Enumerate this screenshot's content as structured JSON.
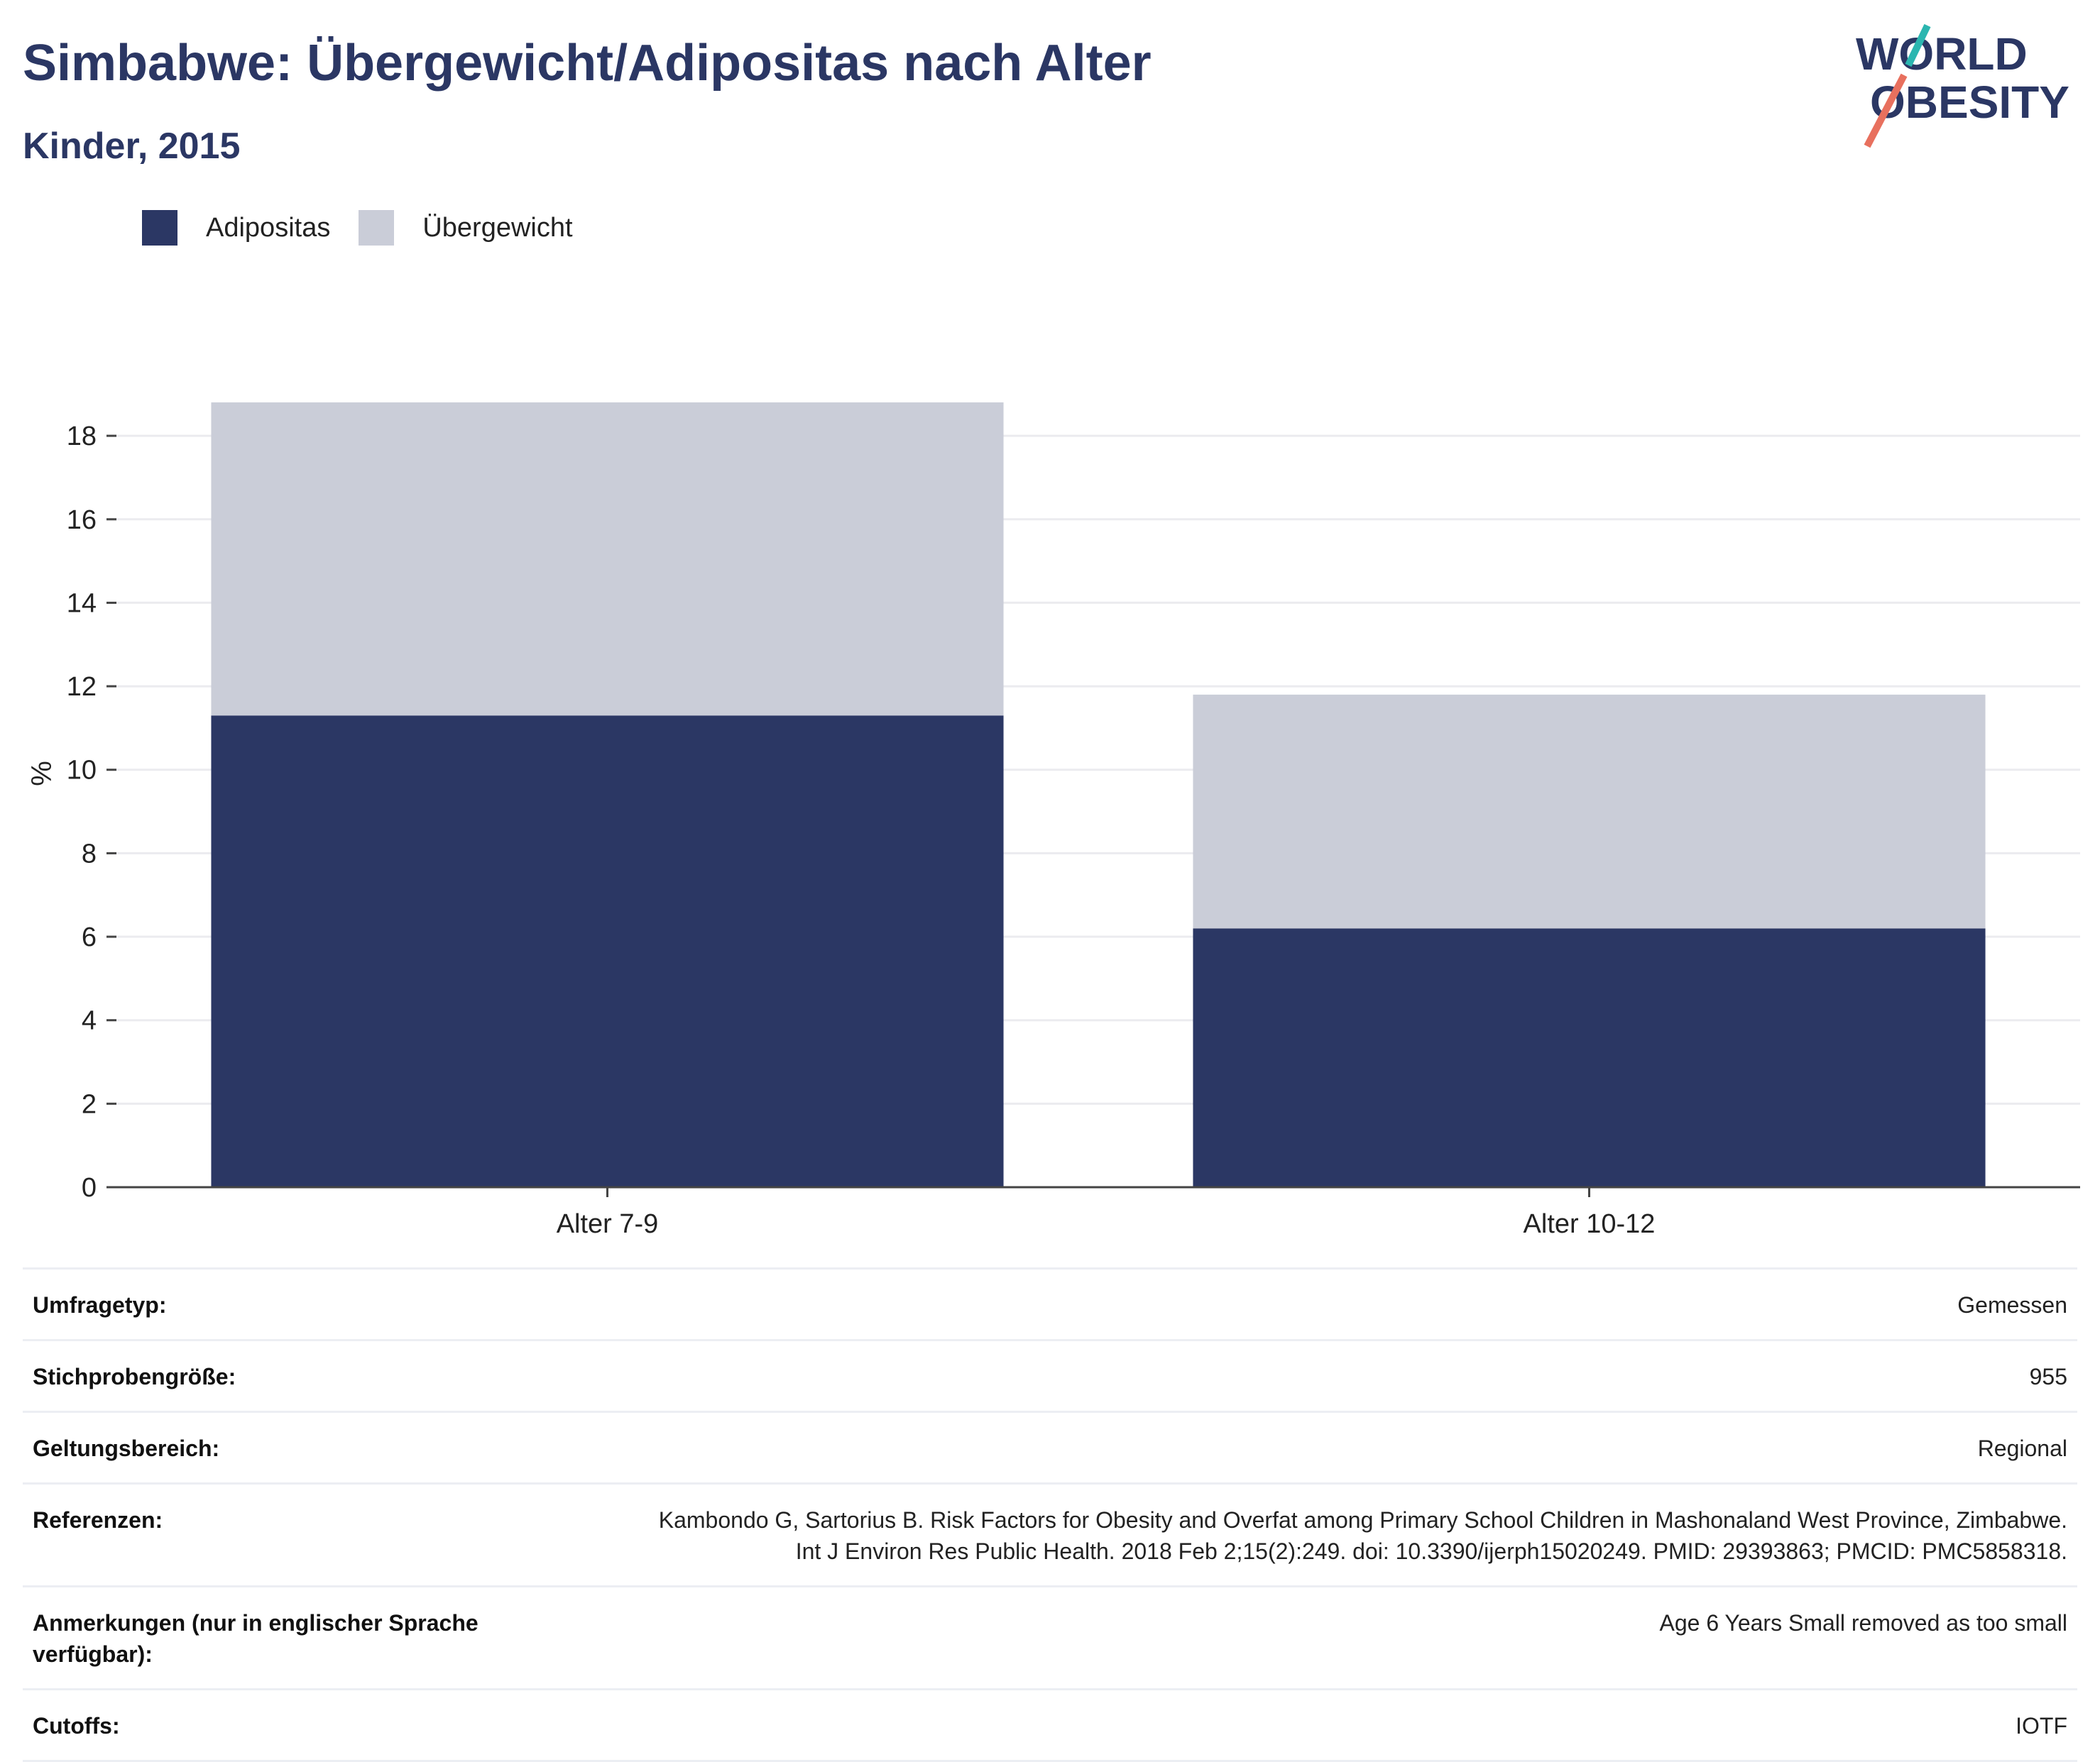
{
  "header": {
    "title": "Simbabwe: Übergewicht/Adipositas nach Alter",
    "subtitle": "Kinder, 2015"
  },
  "logo": {
    "line1": "WORLD",
    "line2": "OBESITY",
    "accent_teal": "#2bb6b0",
    "accent_coral": "#e8705e"
  },
  "colors": {
    "obesity": "#2b3764",
    "overweight": "#cacdd8",
    "text": "#2b3764",
    "grid": "#ebebef"
  },
  "chart_data": {
    "type": "bar",
    "stacked": true,
    "categories": [
      "Alter 7-9",
      "Alter 10-12"
    ],
    "series": [
      {
        "name": "Adipositas",
        "values": [
          11.3,
          6.2
        ],
        "color": "#2b3764"
      },
      {
        "name": "Übergewicht",
        "values": [
          7.5,
          5.6
        ],
        "color": "#cacdd8"
      }
    ],
    "ylabel": "%",
    "yticks": [
      0,
      2,
      4,
      6,
      8,
      10,
      12,
      14,
      16,
      18
    ],
    "ylim": [
      0,
      19.6
    ],
    "grid": true,
    "legend": "top-left"
  },
  "meta": [
    {
      "key": "Umfragetyp:",
      "value": "Gemessen"
    },
    {
      "key": "Stichprobengröße:",
      "value": "955"
    },
    {
      "key": "Geltungsbereich:",
      "value": "Regional"
    },
    {
      "key": "Referenzen:",
      "value": "Kambondo G, Sartorius B. Risk Factors for Obesity and Overfat among Primary School Children in Mashonaland West Province, Zimbabwe. Int J Environ Res Public Health. 2018 Feb 2;15(2):249. doi: 10.3390/ijerph15020249. PMID: 29393863; PMCID: PMC5858318."
    },
    {
      "key": "Anmerkungen (nur in englischer Sprache verfügbar):",
      "value": "Age 6 Years Small removed as too small"
    },
    {
      "key": "Cutoffs:",
      "value": "IOTF"
    }
  ]
}
